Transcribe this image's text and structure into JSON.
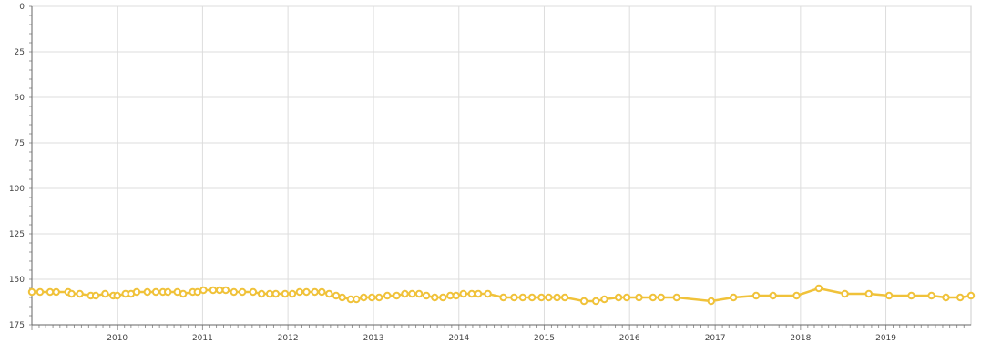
{
  "chart_data": {
    "type": "line",
    "title": "",
    "xlabel": "",
    "ylabel": "",
    "y_reversed": true,
    "ylim": [
      0,
      175
    ],
    "xlim": [
      "2009-01-01",
      "2019-12-31"
    ],
    "grid": true,
    "legend": "none",
    "y_ticks": [
      "0",
      "25",
      "50",
      "75",
      "100",
      "125",
      "150",
      "175"
    ],
    "x_ticks": [
      "2010",
      "2011",
      "2012",
      "2013",
      "2014",
      "2015",
      "2016",
      "2017",
      "2018",
      "2019"
    ],
    "colors": {
      "series": "#f0c23a",
      "marker_fill": "#ffffff",
      "grid": "#dddddd",
      "axis": "#666666"
    },
    "series": [
      {
        "points": [
          {
            "x": "2009-01-01",
            "y": 157
          },
          {
            "x": "2009-02-05",
            "y": 157
          },
          {
            "x": "2009-03-20",
            "y": 157
          },
          {
            "x": "2009-04-15",
            "y": 157
          },
          {
            "x": "2009-06-05",
            "y": 157
          },
          {
            "x": "2009-06-20",
            "y": 158
          },
          {
            "x": "2009-07-25",
            "y": 158
          },
          {
            "x": "2009-09-10",
            "y": 159
          },
          {
            "x": "2009-10-01",
            "y": 159
          },
          {
            "x": "2009-11-10",
            "y": 158
          },
          {
            "x": "2009-12-15",
            "y": 159
          },
          {
            "x": "2010-01-01",
            "y": 159
          },
          {
            "x": "2010-02-05",
            "y": 158
          },
          {
            "x": "2010-03-01",
            "y": 158
          },
          {
            "x": "2010-03-25",
            "y": 157
          },
          {
            "x": "2010-05-10",
            "y": 157
          },
          {
            "x": "2010-06-15",
            "y": 157
          },
          {
            "x": "2010-07-15",
            "y": 157
          },
          {
            "x": "2010-08-05",
            "y": 157
          },
          {
            "x": "2010-09-15",
            "y": 157
          },
          {
            "x": "2010-10-10",
            "y": 158
          },
          {
            "x": "2010-11-20",
            "y": 157
          },
          {
            "x": "2010-12-10",
            "y": 157
          },
          {
            "x": "2011-01-05",
            "y": 156
          },
          {
            "x": "2011-02-15",
            "y": 156
          },
          {
            "x": "2011-03-15",
            "y": 156
          },
          {
            "x": "2011-04-10",
            "y": 156
          },
          {
            "x": "2011-05-15",
            "y": 157
          },
          {
            "x": "2011-06-20",
            "y": 157
          },
          {
            "x": "2011-08-05",
            "y": 157
          },
          {
            "x": "2011-09-10",
            "y": 158
          },
          {
            "x": "2011-10-15",
            "y": 158
          },
          {
            "x": "2011-11-10",
            "y": 158
          },
          {
            "x": "2011-12-20",
            "y": 158
          },
          {
            "x": "2012-01-20",
            "y": 158
          },
          {
            "x": "2012-02-20",
            "y": 157
          },
          {
            "x": "2012-03-20",
            "y": 157
          },
          {
            "x": "2012-04-25",
            "y": 157
          },
          {
            "x": "2012-05-25",
            "y": 157
          },
          {
            "x": "2012-06-25",
            "y": 158
          },
          {
            "x": "2012-07-25",
            "y": 159
          },
          {
            "x": "2012-08-20",
            "y": 160
          },
          {
            "x": "2012-09-25",
            "y": 161
          },
          {
            "x": "2012-10-20",
            "y": 161
          },
          {
            "x": "2012-11-20",
            "y": 160
          },
          {
            "x": "2012-12-25",
            "y": 160
          },
          {
            "x": "2013-01-25",
            "y": 160
          },
          {
            "x": "2013-03-01",
            "y": 159
          },
          {
            "x": "2013-04-10",
            "y": 159
          },
          {
            "x": "2013-05-15",
            "y": 158
          },
          {
            "x": "2013-06-15",
            "y": 158
          },
          {
            "x": "2013-07-15",
            "y": 158
          },
          {
            "x": "2013-08-15",
            "y": 159
          },
          {
            "x": "2013-09-20",
            "y": 160
          },
          {
            "x": "2013-10-25",
            "y": 160
          },
          {
            "x": "2013-11-25",
            "y": 159
          },
          {
            "x": "2013-12-20",
            "y": 159
          },
          {
            "x": "2014-01-20",
            "y": 158
          },
          {
            "x": "2014-02-25",
            "y": 158
          },
          {
            "x": "2014-03-25",
            "y": 158
          },
          {
            "x": "2014-05-05",
            "y": 158
          },
          {
            "x": "2014-07-10",
            "y": 160
          },
          {
            "x": "2014-08-25",
            "y": 160
          },
          {
            "x": "2014-10-01",
            "y": 160
          },
          {
            "x": "2014-11-10",
            "y": 160
          },
          {
            "x": "2014-12-20",
            "y": 160
          },
          {
            "x": "2015-01-20",
            "y": 160
          },
          {
            "x": "2015-02-25",
            "y": 160
          },
          {
            "x": "2015-03-30",
            "y": 160
          },
          {
            "x": "2015-06-20",
            "y": 162
          },
          {
            "x": "2015-08-10",
            "y": 162
          },
          {
            "x": "2015-09-15",
            "y": 161
          },
          {
            "x": "2015-11-15",
            "y": 160
          },
          {
            "x": "2015-12-20",
            "y": 160
          },
          {
            "x": "2016-02-10",
            "y": 160
          },
          {
            "x": "2016-04-10",
            "y": 160
          },
          {
            "x": "2016-05-15",
            "y": 160
          },
          {
            "x": "2016-07-20",
            "y": 160
          },
          {
            "x": "2016-12-15",
            "y": 162
          },
          {
            "x": "2017-03-20",
            "y": 160
          },
          {
            "x": "2017-06-25",
            "y": 159
          },
          {
            "x": "2017-09-05",
            "y": 159
          },
          {
            "x": "2017-12-15",
            "y": 159
          },
          {
            "x": "2018-03-20",
            "y": 155
          },
          {
            "x": "2018-07-10",
            "y": 158
          },
          {
            "x": "2018-10-20",
            "y": 158
          },
          {
            "x": "2019-01-15",
            "y": 159
          },
          {
            "x": "2019-04-20",
            "y": 159
          },
          {
            "x": "2019-07-15",
            "y": 159
          },
          {
            "x": "2019-09-15",
            "y": 160
          },
          {
            "x": "2019-11-15",
            "y": 160
          },
          {
            "x": "2019-12-31",
            "y": 159
          }
        ]
      }
    ]
  }
}
